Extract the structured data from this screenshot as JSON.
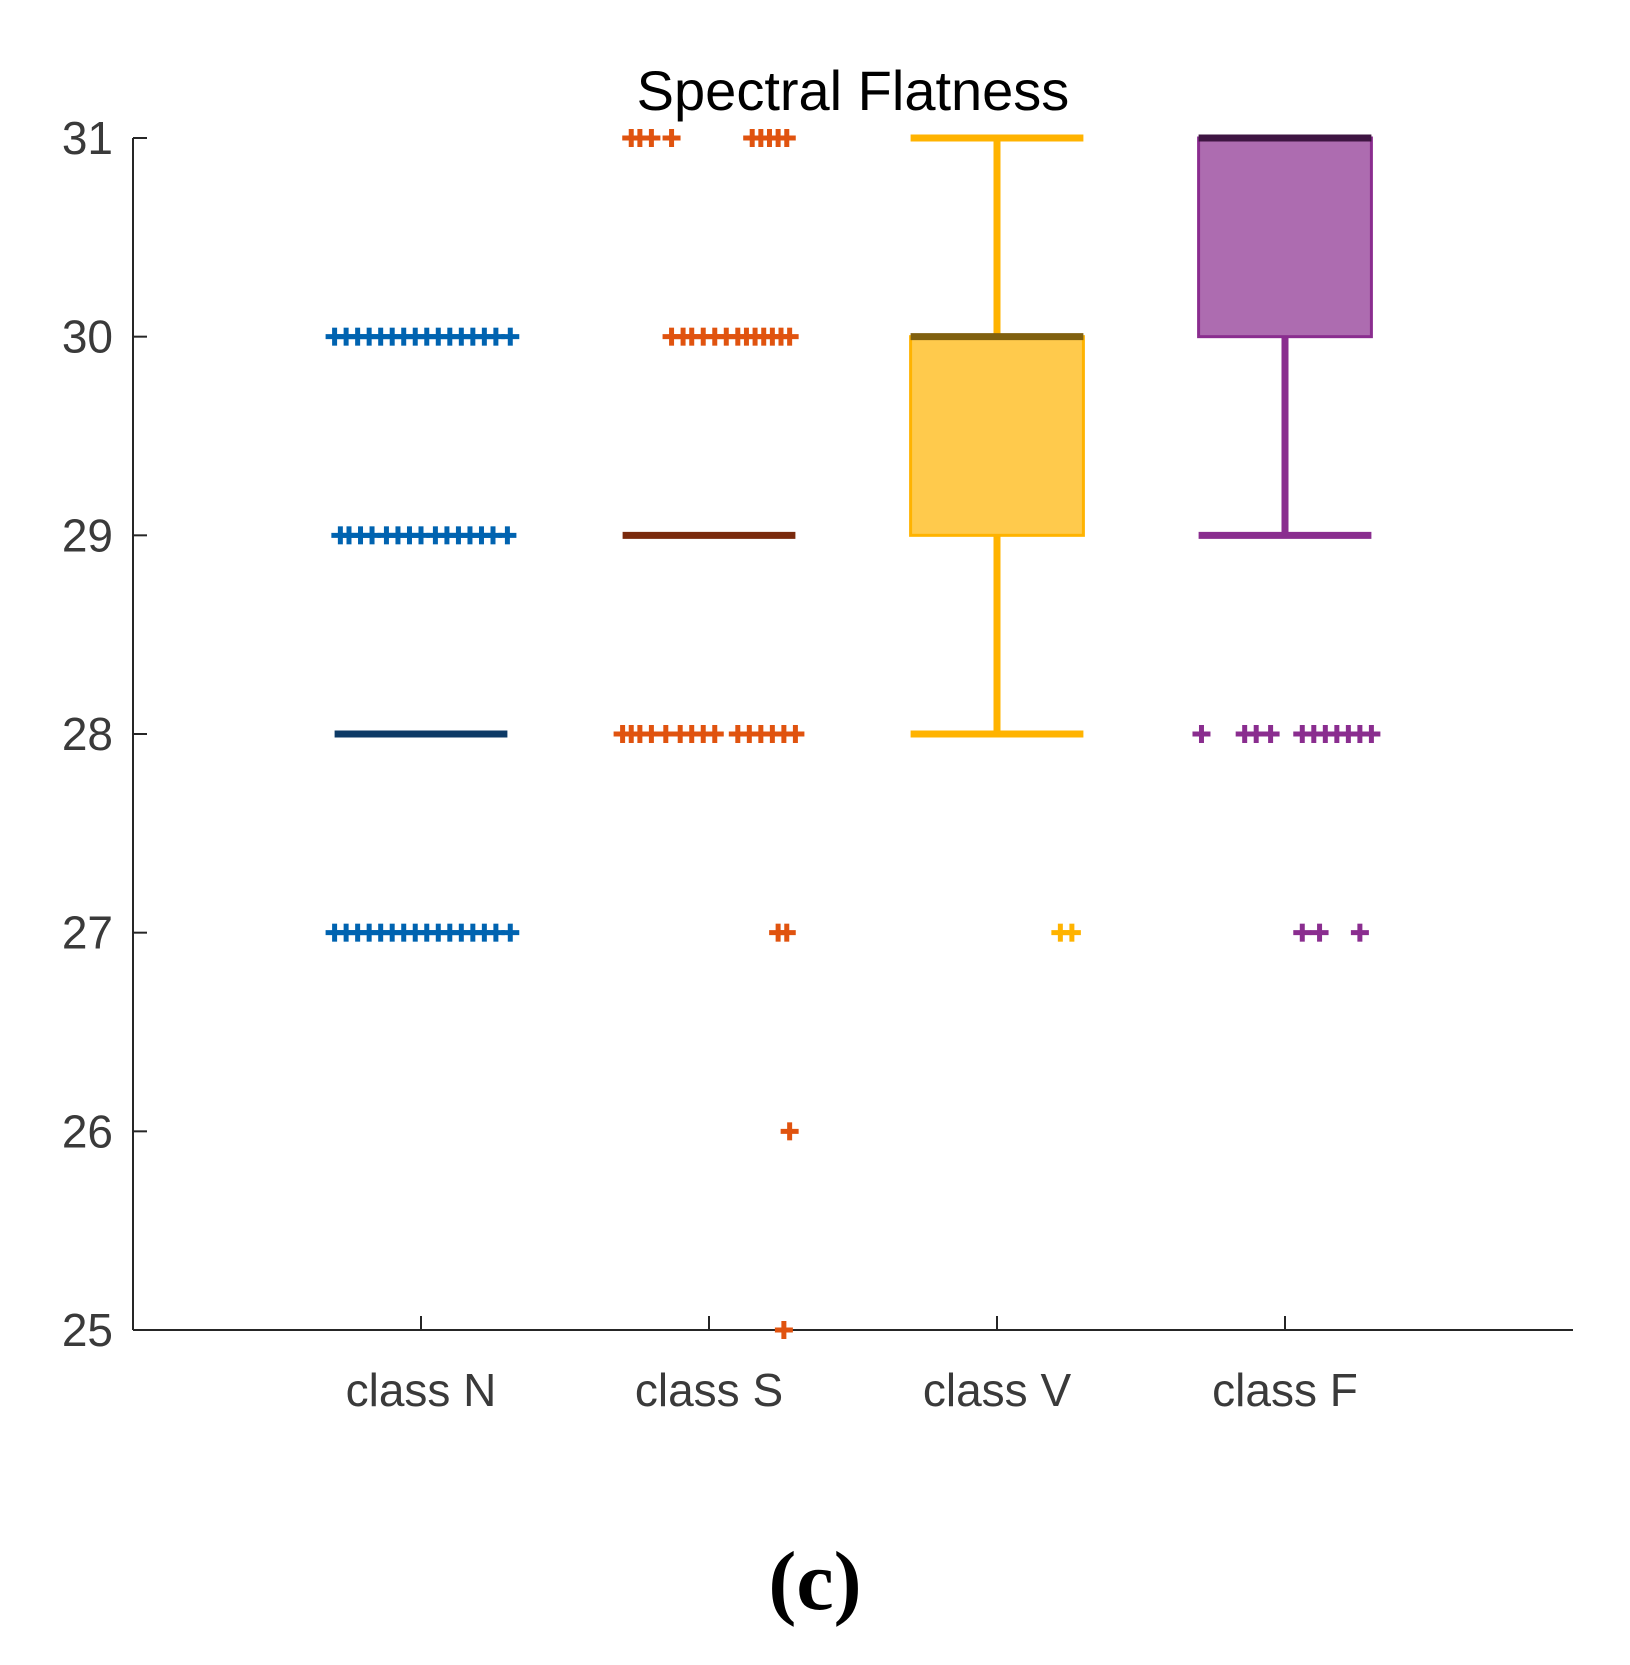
{
  "chart_data": {
    "type": "box",
    "title": "Spectral Flatness",
    "xlabel": "",
    "ylabel": "",
    "ylim": [
      25,
      31
    ],
    "yticks": [
      25,
      26,
      27,
      28,
      29,
      30,
      31
    ],
    "categories": [
      "class N",
      "class S",
      "class V",
      "class F"
    ],
    "series": [
      {
        "name": "class N",
        "color": "#0063b0",
        "median_color": "#0d3a66",
        "box": {
          "q1": 28,
          "median": 28,
          "q3": 28,
          "whisker_low": 28,
          "whisker_high": 28
        },
        "outliers": [
          {
            "y": 30,
            "offsets": [
              -0.3,
              -0.26,
              -0.22,
              -0.18,
              -0.14,
              -0.1,
              -0.06,
              -0.02,
              0.02,
              0.06,
              0.1,
              0.14,
              0.18,
              0.22,
              0.26,
              0.31
            ]
          },
          {
            "y": 29,
            "offsets": [
              -0.28,
              -0.25,
              -0.21,
              -0.17,
              -0.12,
              -0.08,
              -0.04,
              0.0,
              0.05,
              0.09,
              0.13,
              0.17,
              0.21,
              0.25,
              0.3
            ]
          },
          {
            "y": 27,
            "offsets": [
              -0.3,
              -0.26,
              -0.22,
              -0.18,
              -0.14,
              -0.1,
              -0.06,
              -0.02,
              0.02,
              0.06,
              0.1,
              0.14,
              0.18,
              0.22,
              0.26,
              0.31
            ]
          }
        ]
      },
      {
        "name": "class S",
        "color": "#e0530f",
        "median_color": "#7a2a0d",
        "box": {
          "q1": 29,
          "median": 29,
          "q3": 29,
          "whisker_low": 29,
          "whisker_high": 29
        },
        "outliers": [
          {
            "y": 31,
            "offsets": [
              -0.27,
              -0.24,
              -0.2,
              -0.13,
              0.15,
              0.18,
              0.21,
              0.24,
              0.27
            ]
          },
          {
            "y": 30,
            "offsets": [
              -0.13,
              -0.09,
              -0.06,
              -0.02,
              0.02,
              0.06,
              0.1,
              0.13,
              0.16,
              0.19,
              0.22,
              0.25,
              0.28
            ]
          },
          {
            "y": 28,
            "offsets": [
              -0.3,
              -0.27,
              -0.24,
              -0.2,
              -0.15,
              -0.1,
              -0.06,
              -0.02,
              0.02,
              0.1,
              0.14,
              0.18,
              0.22,
              0.26,
              0.3
            ]
          },
          {
            "y": 27,
            "offsets": [
              0.24,
              0.27
            ]
          },
          {
            "y": 26,
            "offsets": [
              0.28
            ]
          },
          {
            "y": 25,
            "offsets": [
              0.26
            ]
          }
        ]
      },
      {
        "name": "class V",
        "color": "#ffb300",
        "median_color": "#80600f",
        "box": {
          "q1": 29,
          "median": 30,
          "q3": 30,
          "whisker_low": 28,
          "whisker_high": 31
        },
        "outliers": [
          {
            "y": 27,
            "offsets": [
              0.22,
              0.26
            ]
          }
        ]
      },
      {
        "name": "class F",
        "color": "#8a2d8f",
        "median_color": "#3e1542",
        "box": {
          "q1": 30,
          "median": 31,
          "q3": 31,
          "whisker_low": 29,
          "whisker_high": 31
        },
        "outliers": [
          {
            "y": 28,
            "offsets": [
              -0.29,
              -0.14,
              -0.1,
              -0.05,
              0.06,
              0.1,
              0.14,
              0.18,
              0.22,
              0.26,
              0.3
            ]
          },
          {
            "y": 27,
            "offsets": [
              0.06,
              0.12,
              0.26
            ]
          }
        ]
      }
    ]
  },
  "panel_label": "(c)"
}
